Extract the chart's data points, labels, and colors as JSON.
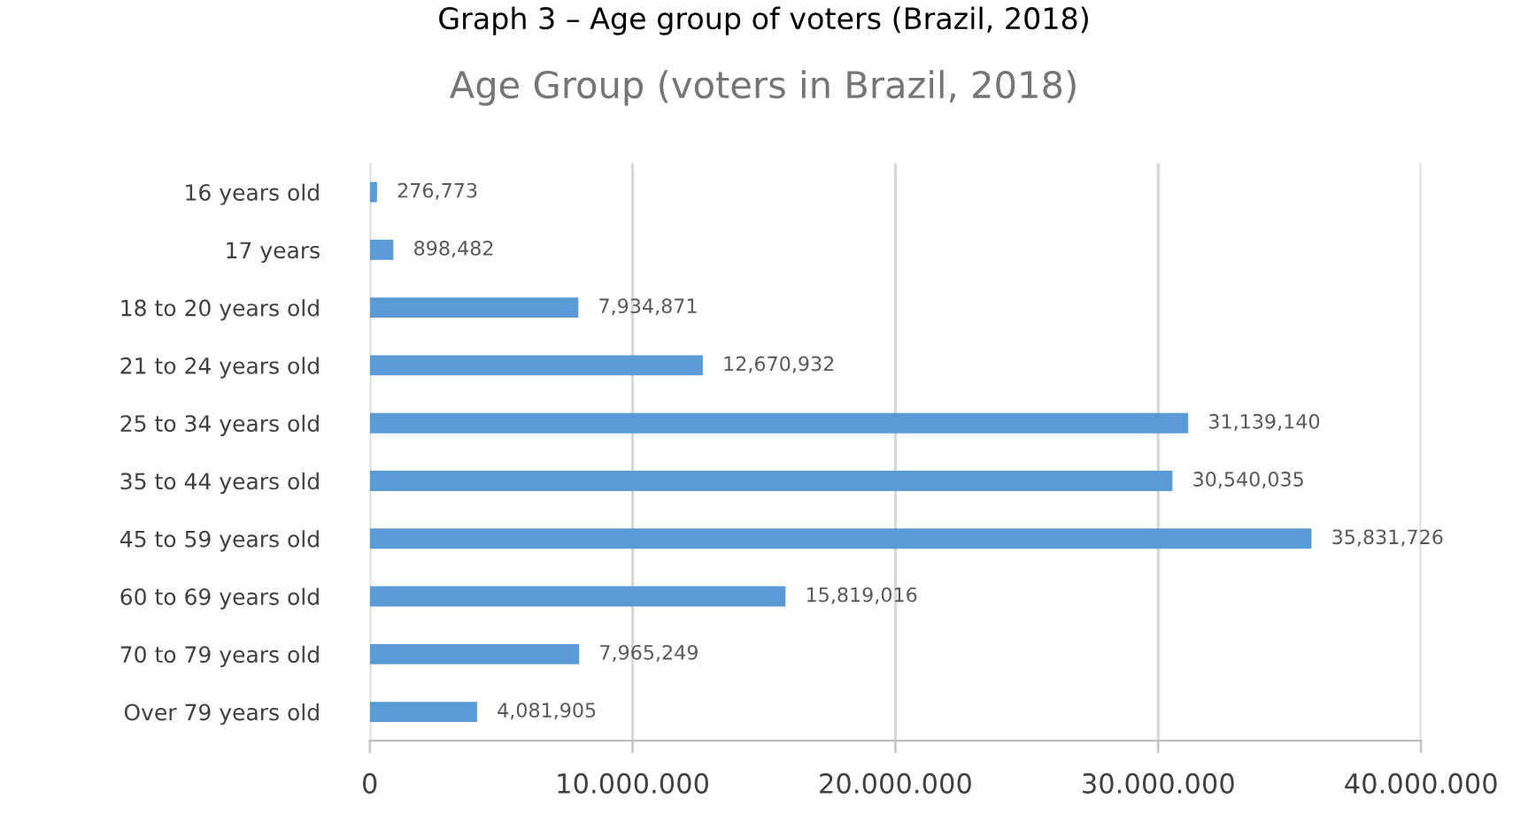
{
  "chart_data": {
    "type": "bar",
    "orientation": "horizontal",
    "title": "Age Group (voters in Brazil, 2018)",
    "annotations": [
      "Graph 3 – Age group of voters (Brazil, 2018)"
    ],
    "categories": [
      "16 years old",
      "17 years",
      "18 to 20 years old",
      "21 to 24 years old",
      "25 to 34 years old",
      "35 to 44 years old",
      "45 to 59 years old",
      "60 to 69 years old",
      "70 to 79 years old",
      "Over 79 years old"
    ],
    "values": [
      276773,
      898482,
      7934871,
      12670932,
      31139140,
      30540035,
      35831726,
      15819016,
      7965249,
      4081905
    ],
    "value_labels": [
      "276,773",
      "898,482",
      "7,934,871",
      "12,670,932",
      "31,139,140",
      "30,540,035",
      "35,831,726",
      "15,819,016",
      "7,965,249",
      "4,081,905"
    ],
    "color": "#5b9bd5",
    "xlim": [
      0,
      40000000
    ],
    "xticks": [
      0,
      {
        "value": 10000000,
        "label": "10.000.000"
      },
      {
        "value": 20000000,
        "label": "20.000.000"
      },
      {
        "value": 30000000,
        "label": "30.000.000"
      },
      {
        "value": 40000000,
        "label": "40.000.000"
      }
    ],
    "grid": "x",
    "legend": false
  }
}
